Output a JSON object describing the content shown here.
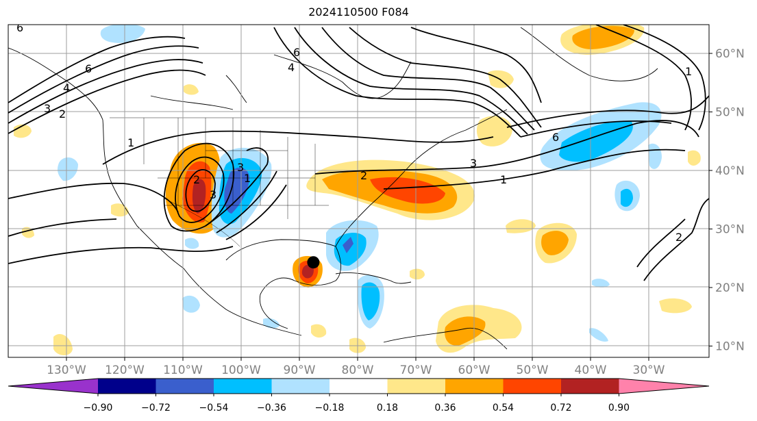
{
  "title": "2024110500 F084",
  "lon_ticks": [
    {
      "value": -130,
      "label": "130°W"
    },
    {
      "value": -120,
      "label": "120°W"
    },
    {
      "value": -110,
      "label": "110°W"
    },
    {
      "value": -100,
      "label": "100°W"
    },
    {
      "value": -90,
      "label": "90°W"
    },
    {
      "value": -80,
      "label": "80°W"
    },
    {
      "value": -70,
      "label": "70°W"
    },
    {
      "value": -60,
      "label": "60°W"
    },
    {
      "value": -50,
      "label": "50°W"
    },
    {
      "value": -40,
      "label": "40°W"
    },
    {
      "value": -30,
      "label": "30°W"
    }
  ],
  "lat_ticks": [
    {
      "value": 60,
      "label": "60°N"
    },
    {
      "value": 50,
      "label": "50°N"
    },
    {
      "value": 40,
      "label": "40°N"
    },
    {
      "value": 30,
      "label": "30°N"
    },
    {
      "value": 20,
      "label": "20°N"
    },
    {
      "value": 10,
      "label": "10°N"
    }
  ],
  "colorbar": {
    "levels": [
      "−0.90",
      "−0.72",
      "−0.54",
      "−0.36",
      "−0.18",
      "0.18",
      "0.36",
      "0.54",
      "0.72",
      "0.90"
    ],
    "colors": [
      "#9932cc",
      "#00008b",
      "#3a5fcd",
      "#00bfff",
      "#b0e2ff",
      "#ffffff",
      "#ffe78a",
      "#ffa500",
      "#ff4500",
      "#b22222",
      "#ff82ab"
    ],
    "extend": "both"
  },
  "contour_labels": [
    "6",
    "6",
    "4",
    "3",
    "2",
    "1",
    "6",
    "4",
    "3",
    "1",
    "2",
    "3",
    "6",
    "2",
    "3",
    "1",
    "1",
    "2"
  ],
  "marker": {
    "type": "storm-center",
    "lon": -87.6,
    "lat": 24.3,
    "color": "#000000"
  }
}
